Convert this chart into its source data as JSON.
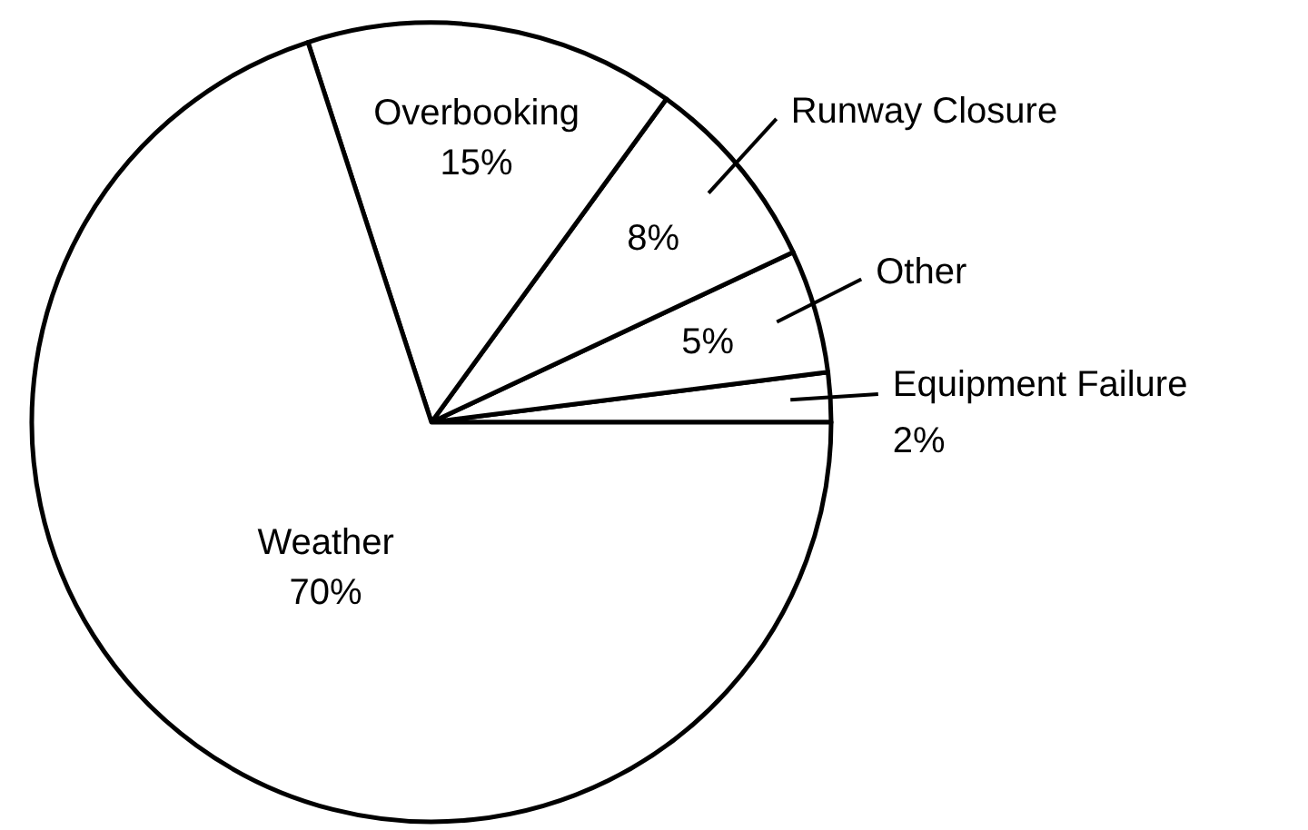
{
  "chart_data": {
    "type": "pie",
    "categories": [
      "Equipment Failure",
      "Other",
      "Runway Closure",
      "Overbooking",
      "Weather"
    ],
    "values": [
      2,
      5,
      8,
      15,
      70
    ],
    "colors": [
      "#ffffff",
      "#ffffff",
      "#ffffff",
      "#ffffff",
      "#ffffff"
    ],
    "value_labels": [
      "2%",
      "5%",
      "8%",
      "15%",
      "70%"
    ]
  }
}
